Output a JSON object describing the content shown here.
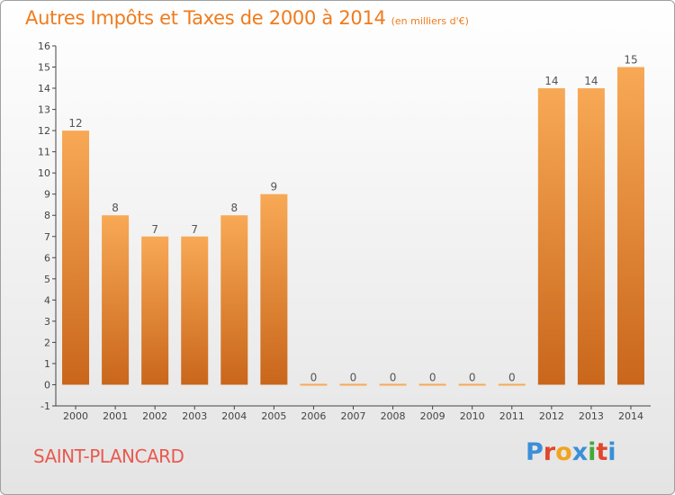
{
  "header": {
    "title": "Autres Impôts et Taxes de 2000 à 2014",
    "subtitle": "(en milliers d'€)"
  },
  "footer": {
    "commune": "SAINT-PLANCARD",
    "brand_letters": [
      "P",
      "r",
      "o",
      "x",
      "i",
      "t",
      "i"
    ]
  },
  "colors": {
    "title": "#f07b1d",
    "commune": "#e85a4f",
    "bar_light": "#f8a955",
    "bar_dark": "#c9661b",
    "brand": [
      "#3a8fd8",
      "#e2462c",
      "#f2a41d",
      "#3a8fd8",
      "#47a83c",
      "#e2462c",
      "#3a8fd8"
    ]
  },
  "chart_data": {
    "type": "bar",
    "title": "Autres Impôts et Taxes de 2000 à 2014",
    "ylabel": "en milliers d'€",
    "xlabel": "",
    "categories": [
      "2000",
      "2001",
      "2002",
      "2003",
      "2004",
      "2005",
      "2006",
      "2007",
      "2008",
      "2009",
      "2010",
      "2011",
      "2012",
      "2013",
      "2014"
    ],
    "values": [
      12,
      8,
      7,
      7,
      8,
      9,
      0,
      0,
      0,
      0,
      0,
      0,
      14,
      14,
      15
    ],
    "data_labels": [
      "12",
      "8",
      "7",
      "7",
      "8",
      "9",
      "0",
      "0",
      "0",
      "0",
      "0",
      "0",
      "14",
      "14",
      "15"
    ],
    "ylim": [
      -1,
      16
    ],
    "yticks": [
      "-1",
      "0",
      "1",
      "2",
      "3",
      "4",
      "5",
      "6",
      "7",
      "8",
      "9",
      "10",
      "11",
      "12",
      "13",
      "14",
      "15",
      "16"
    ],
    "grid": false,
    "legend": "none"
  }
}
